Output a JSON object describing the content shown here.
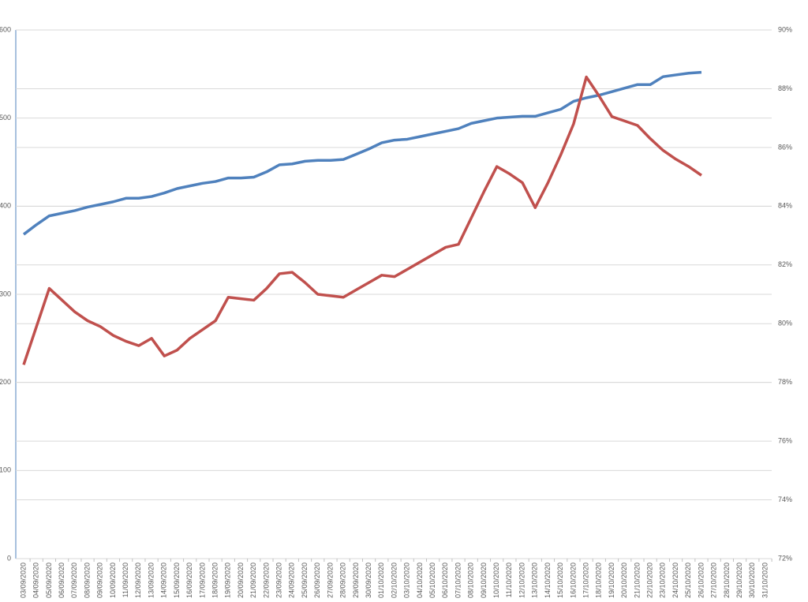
{
  "chart_data": {
    "type": "line",
    "categories": [
      "03/09/2020",
      "04/09/2020",
      "05/09/2020",
      "06/09/2020",
      "07/09/2020",
      "08/09/2020",
      "09/09/2020",
      "10/09/2020",
      "11/09/2020",
      "12/09/2020",
      "13/09/2020",
      "14/09/2020",
      "15/09/2020",
      "16/09/2020",
      "17/09/2020",
      "18/09/2020",
      "19/09/2020",
      "20/09/2020",
      "21/09/2020",
      "22/09/2020",
      "23/09/2020",
      "24/09/2020",
      "25/09/2020",
      "26/09/2020",
      "27/09/2020",
      "28/09/2020",
      "29/09/2020",
      "30/09/2020",
      "01/10/2020",
      "02/10/2020",
      "03/10/2020",
      "04/10/2020",
      "05/10/2020",
      "06/10/2020",
      "07/10/2020",
      "08/10/2020",
      "09/10/2020",
      "10/10/2020",
      "11/10/2020",
      "12/10/2020",
      "13/10/2020",
      "14/10/2020",
      "15/10/2020",
      "16/10/2020",
      "17/10/2020",
      "18/10/2020",
      "19/10/2020",
      "20/10/2020",
      "21/10/2020",
      "22/10/2020",
      "23/10/2020",
      "24/10/2020",
      "25/10/2020",
      "26/10/2020",
      "27/10/2020",
      "28/10/2020",
      "29/10/2020",
      "30/10/2020",
      "31/10/2020"
    ],
    "series": [
      {
        "color": "#4f81bd",
        "axis": "y",
        "values": [
          368,
          379,
          389,
          392,
          395,
          399,
          402,
          405,
          409,
          409,
          411,
          415,
          420,
          423,
          426,
          428,
          432,
          432,
          433,
          439,
          447,
          448,
          451,
          452,
          452,
          453,
          459,
          465,
          472,
          475,
          476,
          479,
          482,
          485,
          488,
          494,
          497,
          500,
          501,
          502,
          502,
          506,
          510,
          519,
          523,
          526,
          530,
          534,
          538,
          538,
          547,
          549,
          551,
          552,
          null,
          null,
          null,
          null,
          null
        ]
      },
      {
        "color": "#c0504d",
        "axis": "y2",
        "values": [
          78.6,
          79.9,
          81.2,
          80.8,
          80.4,
          80.1,
          79.9,
          79.6,
          79.4,
          79.25,
          79.5,
          78.9,
          79.1,
          79.5,
          79.8,
          80.1,
          80.9,
          80.85,
          80.8,
          81.2,
          81.7,
          81.75,
          81.4,
          81.0,
          80.95,
          80.9,
          81.15,
          81.4,
          81.65,
          81.6,
          81.85,
          82.1,
          82.35,
          82.6,
          82.7,
          83.6,
          84.5,
          85.35,
          85.1,
          84.8,
          83.95,
          84.8,
          85.75,
          86.8,
          88.4,
          87.75,
          87.05,
          86.9,
          86.75,
          86.3,
          85.9,
          85.6,
          85.35,
          85.05,
          null,
          null,
          null,
          null,
          null
        ]
      }
    ],
    "ylim": [
      0,
      600
    ],
    "yticks": [
      0,
      100,
      200,
      300,
      400,
      500,
      600
    ],
    "y2lim": [
      72,
      90
    ],
    "y2ticks": [
      {
        "value": 72,
        "label": "72%"
      },
      {
        "value": 74,
        "label": "74%"
      },
      {
        "value": 76,
        "label": "76%"
      },
      {
        "value": 78,
        "label": "78%"
      },
      {
        "value": 80,
        "label": "80%"
      },
      {
        "value": 82,
        "label": "82%"
      },
      {
        "value": 84,
        "label": "84%"
      },
      {
        "value": 86,
        "label": "86%"
      },
      {
        "value": 88,
        "label": "88%"
      },
      {
        "value": 90,
        "label": "90%"
      }
    ],
    "grid": true
  }
}
